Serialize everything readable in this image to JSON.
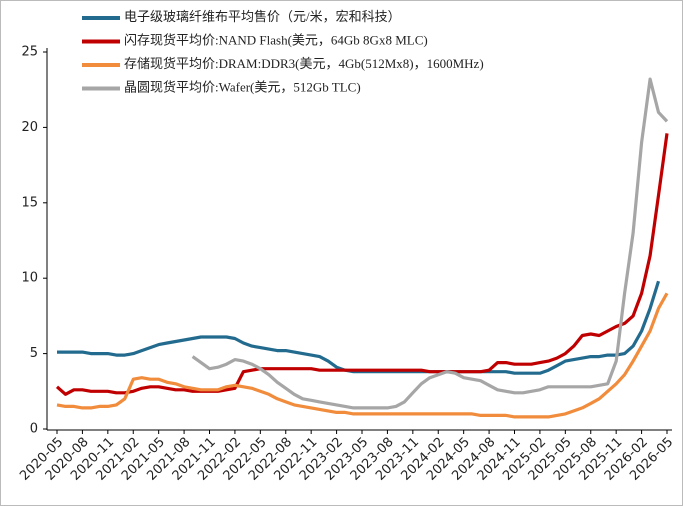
{
  "chart_data": {
    "type": "line",
    "categories": [
      "2020-05",
      null,
      null,
      "2020-08",
      null,
      null,
      "2020-11",
      null,
      null,
      "2021-02",
      null,
      null,
      "2021-05",
      null,
      null,
      "2021-08",
      null,
      null,
      "2021-11",
      null,
      null,
      "2022-02",
      null,
      null,
      "2022-05",
      null,
      null,
      "2022-08",
      null,
      null,
      "2022-11",
      null,
      null,
      "2023-02",
      null,
      null,
      "2023-05",
      null,
      null,
      "2023-08",
      null,
      null,
      "2023-11",
      null,
      null,
      "2024-02",
      null,
      null,
      "2024-05",
      null,
      null,
      "2024-08",
      null,
      null,
      "2024-11",
      null,
      null,
      "2025-02",
      null,
      null,
      "2025-05",
      null,
      null,
      "2025-08",
      null,
      null,
      "2025-11",
      null,
      null,
      "2026-02",
      null,
      null,
      "2026-05"
    ],
    "series": [
      {
        "name": "电子级玻璃纤维布平均售价（元/米，宏和科技）",
        "color": "#236b8e",
        "values": [
          5.1,
          5.1,
          5.1,
          5.1,
          5.0,
          5.0,
          5.0,
          4.9,
          4.9,
          5.0,
          5.2,
          5.4,
          5.6,
          5.7,
          5.8,
          5.9,
          6.0,
          6.1,
          6.1,
          6.1,
          6.1,
          6.0,
          5.7,
          5.5,
          5.4,
          5.3,
          5.2,
          5.2,
          5.1,
          5.0,
          4.9,
          4.8,
          4.5,
          4.1,
          3.9,
          3.8,
          3.8,
          3.8,
          3.8,
          3.8,
          3.8,
          3.8,
          3.8,
          3.8,
          3.8,
          3.8,
          3.8,
          3.8,
          3.8,
          3.8,
          3.8,
          3.8,
          3.8,
          3.8,
          3.7,
          3.7,
          3.7,
          3.7,
          3.9,
          4.2,
          4.5,
          4.6,
          4.7,
          4.8,
          4.8,
          4.9,
          4.9,
          5.0,
          5.5,
          6.5,
          8.0,
          9.8,
          null
        ]
      },
      {
        "name": "闪存现货平均价:NAND Flash(美元，64Gb 8Gx8 MLC)",
        "color": "#c00000",
        "values": [
          2.8,
          2.3,
          2.6,
          2.6,
          2.5,
          2.5,
          2.5,
          2.4,
          2.4,
          2.5,
          2.7,
          2.8,
          2.8,
          2.7,
          2.6,
          2.6,
          2.5,
          2.5,
          2.5,
          2.5,
          2.6,
          2.7,
          3.8,
          3.9,
          4.0,
          4.0,
          4.0,
          4.0,
          4.0,
          4.0,
          4.0,
          3.9,
          3.9,
          3.9,
          3.9,
          3.9,
          3.9,
          3.9,
          3.9,
          3.9,
          3.9,
          3.9,
          3.9,
          3.9,
          3.8,
          3.8,
          3.8,
          3.8,
          3.8,
          3.8,
          3.8,
          3.9,
          4.4,
          4.4,
          4.3,
          4.3,
          4.3,
          4.4,
          4.5,
          4.7,
          5.0,
          5.5,
          6.2,
          6.3,
          6.2,
          6.5,
          6.8,
          7.0,
          7.5,
          9.0,
          11.5,
          15.5,
          19.6
        ]
      },
      {
        "name": "存储现货平均价:DRAM:DDR3(美元，4Gb(512Mx8)，1600MHz)",
        "color": "#f08c3c",
        "values": [
          1.6,
          1.5,
          1.5,
          1.4,
          1.4,
          1.5,
          1.5,
          1.6,
          2.0,
          3.3,
          3.4,
          3.3,
          3.3,
          3.1,
          3.0,
          2.8,
          2.7,
          2.6,
          2.6,
          2.6,
          2.8,
          2.9,
          2.8,
          2.7,
          2.5,
          2.3,
          2.0,
          1.8,
          1.6,
          1.5,
          1.4,
          1.3,
          1.2,
          1.1,
          1.1,
          1.0,
          1.0,
          1.0,
          1.0,
          1.0,
          1.0,
          1.0,
          1.0,
          1.0,
          1.0,
          1.0,
          1.0,
          1.0,
          1.0,
          1.0,
          0.9,
          0.9,
          0.9,
          0.9,
          0.8,
          0.8,
          0.8,
          0.8,
          0.8,
          0.9,
          1.0,
          1.2,
          1.4,
          1.7,
          2.0,
          2.5,
          3.0,
          3.6,
          4.5,
          5.5,
          6.5,
          8.0,
          9.0
        ]
      },
      {
        "name": "晶圆现货平均价:Wafer(美元，512Gb TLC)",
        "color": "#a6a6a6",
        "values": [
          null,
          null,
          null,
          null,
          null,
          null,
          null,
          null,
          null,
          null,
          null,
          null,
          null,
          null,
          null,
          null,
          4.8,
          4.4,
          4.0,
          4.1,
          4.3,
          4.6,
          4.5,
          4.3,
          4.0,
          3.6,
          3.1,
          2.7,
          2.3,
          2.0,
          1.9,
          1.8,
          1.7,
          1.6,
          1.5,
          1.4,
          1.4,
          1.4,
          1.4,
          1.4,
          1.5,
          1.8,
          2.4,
          3.0,
          3.4,
          3.6,
          3.8,
          3.7,
          3.4,
          3.3,
          3.2,
          2.9,
          2.6,
          2.5,
          2.4,
          2.4,
          2.5,
          2.6,
          2.8,
          2.8,
          2.8,
          2.8,
          2.8,
          2.8,
          2.9,
          3.0,
          4.5,
          9.0,
          13.0,
          19.0,
          23.2,
          21.0,
          20.4
        ]
      }
    ],
    "ylim": [
      0,
      25
    ],
    "yticks": [
      0,
      5,
      10,
      15,
      20,
      25
    ],
    "grid": false
  }
}
